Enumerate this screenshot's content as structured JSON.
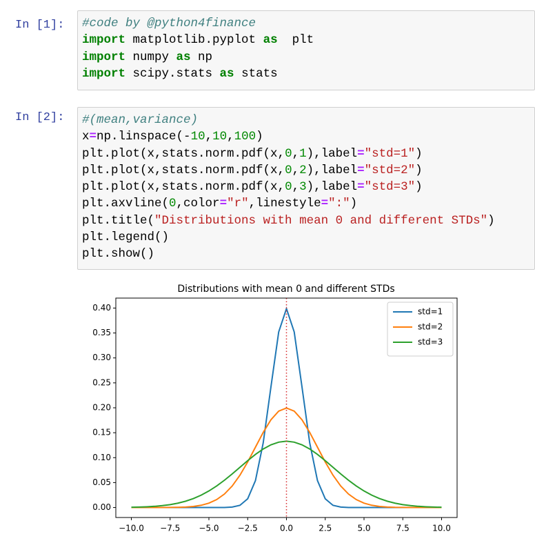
{
  "cells": [
    {
      "prompt": "In [1]:",
      "lines": [
        [
          {
            "t": "#code by @python4finance",
            "k": "comment"
          }
        ],
        [
          {
            "t": "import",
            "k": "kw"
          },
          {
            "t": " matplotlib.pyplot "
          },
          {
            "t": "as",
            "k": "kw"
          },
          {
            "t": "  plt"
          }
        ],
        [
          {
            "t": "import",
            "k": "kw"
          },
          {
            "t": " numpy "
          },
          {
            "t": "as",
            "k": "kw"
          },
          {
            "t": " np"
          }
        ],
        [
          {
            "t": "import",
            "k": "kw"
          },
          {
            "t": " scipy.stats "
          },
          {
            "t": "as",
            "k": "kw"
          },
          {
            "t": " stats"
          }
        ]
      ]
    },
    {
      "prompt": "In [2]:",
      "lines": [
        [
          {
            "t": "#(mean,variance)",
            "k": "comment"
          }
        ],
        [
          {
            "t": "x"
          },
          {
            "t": "=",
            "k": "op"
          },
          {
            "t": "np.linspace(-"
          },
          {
            "t": "10",
            "k": "num"
          },
          {
            "t": ","
          },
          {
            "t": "10",
            "k": "num"
          },
          {
            "t": ","
          },
          {
            "t": "100",
            "k": "num"
          },
          {
            "t": ")"
          }
        ],
        [
          {
            "t": "plt.plot(x,stats.norm.pdf(x,"
          },
          {
            "t": "0",
            "k": "num"
          },
          {
            "t": ","
          },
          {
            "t": "1",
            "k": "num"
          },
          {
            "t": "),label"
          },
          {
            "t": "=",
            "k": "op"
          },
          {
            "t": "\"std=1\"",
            "k": "str"
          },
          {
            "t": ")"
          }
        ],
        [
          {
            "t": "plt.plot(x,stats.norm.pdf(x,"
          },
          {
            "t": "0",
            "k": "num"
          },
          {
            "t": ","
          },
          {
            "t": "2",
            "k": "num"
          },
          {
            "t": "),label"
          },
          {
            "t": "=",
            "k": "op"
          },
          {
            "t": "\"std=2\"",
            "k": "str"
          },
          {
            "t": ")"
          }
        ],
        [
          {
            "t": "plt.plot(x,stats.norm.pdf(x,"
          },
          {
            "t": "0",
            "k": "num"
          },
          {
            "t": ","
          },
          {
            "t": "3",
            "k": "num"
          },
          {
            "t": "),label"
          },
          {
            "t": "=",
            "k": "op"
          },
          {
            "t": "\"std=3\"",
            "k": "str"
          },
          {
            "t": ")"
          }
        ],
        [
          {
            "t": "plt.axvline("
          },
          {
            "t": "0",
            "k": "num"
          },
          {
            "t": ",color"
          },
          {
            "t": "=",
            "k": "op"
          },
          {
            "t": "\"r\"",
            "k": "str"
          },
          {
            "t": ",linestyle"
          },
          {
            "t": "=",
            "k": "op"
          },
          {
            "t": "\":\"",
            "k": "str"
          },
          {
            "t": ")"
          }
        ],
        [
          {
            "t": "plt.title("
          },
          {
            "t": "\"Distributions with mean 0 and different STDs\"",
            "k": "str"
          },
          {
            "t": ")"
          }
        ],
        [
          {
            "t": "plt.legend()"
          }
        ],
        [
          {
            "t": "plt.show()"
          }
        ]
      ]
    }
  ],
  "chart_data": {
    "type": "line",
    "title": "Distributions with mean 0 and different STDs",
    "x": [
      -10,
      -9.5,
      -9,
      -8.5,
      -8,
      -7.5,
      -7,
      -6.5,
      -6,
      -5.5,
      -5,
      -4.5,
      -4,
      -3.5,
      -3,
      -2.5,
      -2,
      -1.5,
      -1,
      -0.5,
      0,
      0.5,
      1,
      1.5,
      2,
      2.5,
      3,
      3.5,
      4,
      4.5,
      5,
      5.5,
      6,
      6.5,
      7,
      7.5,
      8,
      8.5,
      9,
      9.5,
      10
    ],
    "series": [
      {
        "name": "std=1",
        "color": "#1f77b4",
        "values": [
          0,
          0,
          0,
          0,
          0,
          0,
          0,
          0,
          0,
          0,
          0,
          0,
          0.0001,
          0.0009,
          0.0044,
          0.0175,
          0.054,
          0.1295,
          0.242,
          0.3521,
          0.3989,
          0.3521,
          0.242,
          0.1295,
          0.054,
          0.0175,
          0.0044,
          0.0009,
          0.0001,
          0,
          0,
          0,
          0,
          0,
          0,
          0,
          0,
          0,
          0,
          0,
          0
        ]
      },
      {
        "name": "std=2",
        "color": "#ff7f0e",
        "values": [
          0,
          0,
          0,
          0,
          0.0001,
          0.0002,
          0.0004,
          0.001,
          0.0022,
          0.0045,
          0.0088,
          0.0159,
          0.027,
          0.0431,
          0.0648,
          0.0913,
          0.121,
          0.1506,
          0.176,
          0.1933,
          0.1995,
          0.1933,
          0.176,
          0.1506,
          0.121,
          0.0913,
          0.0648,
          0.0431,
          0.027,
          0.0159,
          0.0088,
          0.0045,
          0.0022,
          0.001,
          0.0004,
          0.0002,
          0.0001,
          0,
          0,
          0,
          0
        ]
      },
      {
        "name": "std=3",
        "color": "#2ca02c",
        "values": [
          0.0005,
          0.0009,
          0.0015,
          0.0024,
          0.0038,
          0.0058,
          0.0087,
          0.0127,
          0.018,
          0.0248,
          0.0332,
          0.0432,
          0.0547,
          0.0673,
          0.0807,
          0.094,
          0.1065,
          0.1174,
          0.1258,
          0.1311,
          0.133,
          0.1311,
          0.1258,
          0.1174,
          0.1065,
          0.094,
          0.0807,
          0.0673,
          0.0547,
          0.0432,
          0.0332,
          0.0248,
          0.018,
          0.0127,
          0.0087,
          0.0058,
          0.0038,
          0.0024,
          0.0015,
          0.0009,
          0.0005
        ]
      }
    ],
    "vline": {
      "x": 0,
      "color": "#d62728"
    },
    "xlim": [
      -11,
      11
    ],
    "ylim": [
      -0.02,
      0.42
    ],
    "xticks": [
      {
        "value": -10,
        "label": "−10.0"
      },
      {
        "value": -7.5,
        "label": "−7.5"
      },
      {
        "value": -5,
        "label": "−5.0"
      },
      {
        "value": -2.5,
        "label": "−2.5"
      },
      {
        "value": 0,
        "label": "0.0"
      },
      {
        "value": 2.5,
        "label": "2.5"
      },
      {
        "value": 5,
        "label": "5.0"
      },
      {
        "value": 7.5,
        "label": "7.5"
      },
      {
        "value": 10,
        "label": "10.0"
      }
    ],
    "yticks": [
      {
        "value": 0,
        "label": "0.00"
      },
      {
        "value": 0.05,
        "label": "0.05"
      },
      {
        "value": 0.1,
        "label": "0.10"
      },
      {
        "value": 0.15,
        "label": "0.15"
      },
      {
        "value": 0.2,
        "label": "0.20"
      },
      {
        "value": 0.25,
        "label": "0.25"
      },
      {
        "value": 0.3,
        "label": "0.30"
      },
      {
        "value": 0.35,
        "label": "0.35"
      },
      {
        "value": 0.4,
        "label": "0.40"
      }
    ],
    "legend": "upper right"
  }
}
